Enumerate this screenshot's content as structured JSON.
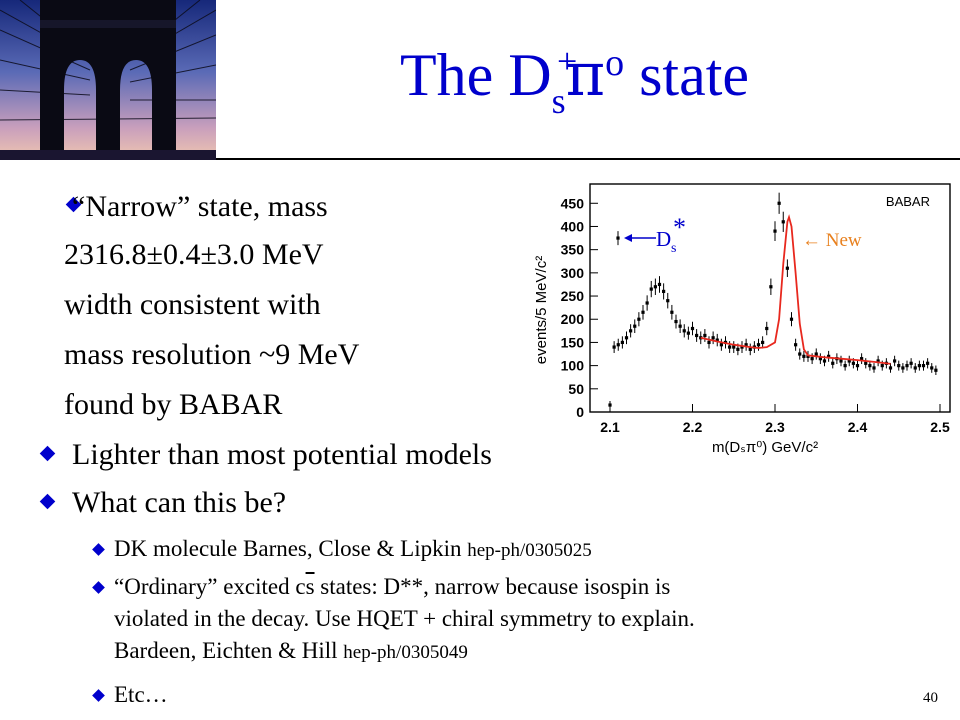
{
  "slide": {
    "title_pre": "The D",
    "title_sub": "s",
    "title_sup": "+",
    "title_pi": "π",
    "title_o": "o",
    "title_post": " state",
    "page_number": "40"
  },
  "bullets": {
    "b1_lines": [
      "“Narrow” state, mass",
      "2316.8±0.4±3.0 MeV",
      "width consistent with",
      "mass resolution ~9 MeV",
      "found by BABAR"
    ],
    "b2": "Lighter than most potential models",
    "b3": "What can this be?",
    "s1_text": "DK molecule Barnes, Close & Lipkin ",
    "s1_ref": "hep-ph/0305025",
    "s2_a": "“Ordinary” excited c",
    "s2_bar": "s",
    "s2_b": " states: D**, narrow because isospin is",
    "s2_line2": "violated in the decay. Use HQET + chiral symmetry to explain.",
    "s2_line3": "Bardeen, Eichten & Hill ",
    "s2_ref": "hep-ph/0305049",
    "s3": "Etc…"
  },
  "chart_data": {
    "type": "scatter",
    "title": "BABAR",
    "xlabel": "m(Dₛπ⁰) GeV/c²",
    "ylabel": "events/5 MeV/c²",
    "xlim": [
      2.1,
      2.5
    ],
    "ylim": [
      0,
      470
    ],
    "xticks": [
      "2.1",
      "2.2",
      "2.3",
      "2.4",
      "2.5"
    ],
    "yticks": [
      "0",
      "50",
      "100",
      "150",
      "200",
      "250",
      "300",
      "350",
      "400",
      "450"
    ],
    "annotations": {
      "ds_star_d": "D",
      "ds_star_s": "s",
      "ds_star_star": "*",
      "new": "← New"
    },
    "points": {
      "x": [
        2.1,
        2.105,
        2.11,
        2.115,
        2.12,
        2.125,
        2.13,
        2.135,
        2.14,
        2.145,
        2.15,
        2.155,
        2.16,
        2.165,
        2.17,
        2.175,
        2.18,
        2.185,
        2.19,
        2.195,
        2.2,
        2.205,
        2.21,
        2.215,
        2.22,
        2.225,
        2.23,
        2.235,
        2.24,
        2.245,
        2.25,
        2.255,
        2.26,
        2.265,
        2.27,
        2.275,
        2.28,
        2.285,
        2.29,
        2.295,
        2.3,
        2.305,
        2.31,
        2.315,
        2.32,
        2.325,
        2.33,
        2.335,
        2.34,
        2.345,
        2.35,
        2.355,
        2.36,
        2.365,
        2.37,
        2.375,
        2.38,
        2.385,
        2.39,
        2.395,
        2.4,
        2.405,
        2.41,
        2.415,
        2.42,
        2.425,
        2.43,
        2.435,
        2.44,
        2.445,
        2.45,
        2.455,
        2.46,
        2.465,
        2.47,
        2.475,
        2.48,
        2.485,
        2.49,
        2.495
      ],
      "y": [
        15,
        140,
        145,
        150,
        160,
        175,
        185,
        200,
        215,
        235,
        265,
        270,
        275,
        260,
        240,
        215,
        195,
        185,
        175,
        170,
        180,
        165,
        160,
        165,
        150,
        160,
        155,
        145,
        150,
        140,
        140,
        135,
        140,
        145,
        135,
        140,
        145,
        150,
        180,
        270,
        390,
        450,
        410,
        310,
        200,
        145,
        125,
        120,
        120,
        115,
        125,
        115,
        110,
        120,
        105,
        115,
        110,
        100,
        110,
        105,
        100,
        115,
        105,
        100,
        95,
        110,
        100,
        105,
        95,
        110,
        100,
        95,
        100,
        105,
        95,
        100,
        100,
        105,
        95,
        90
      ],
      "y_marker_ds_star": 375
    },
    "fit": {
      "x": [
        2.21,
        2.23,
        2.25,
        2.27,
        2.28,
        2.29,
        2.3,
        2.305,
        2.31,
        2.315,
        2.317,
        2.32,
        2.325,
        2.33,
        2.335,
        2.34,
        2.36,
        2.38,
        2.4,
        2.42,
        2.44
      ],
      "y": [
        160,
        152,
        145,
        140,
        138,
        140,
        150,
        200,
        320,
        410,
        420,
        400,
        300,
        190,
        135,
        122,
        118,
        115,
        112,
        108,
        104
      ]
    },
    "colors": {
      "fit": "#e8281e",
      "new": "#e8801e",
      "points": "#000000"
    }
  }
}
